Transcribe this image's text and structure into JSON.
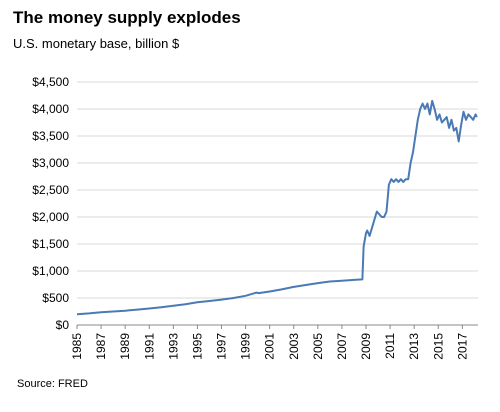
{
  "chart_data": {
    "type": "line",
    "title": "The money supply explodes",
    "subtitle": "U.S. monetary base, billion $",
    "source": "Source: FRED",
    "ylim": [
      0,
      4500
    ],
    "yticks": [
      0,
      500,
      1000,
      1500,
      2000,
      2500,
      3000,
      3500,
      4000,
      4500
    ],
    "ytick_labels": [
      "$0",
      "$500",
      "$1,000",
      "$1,500",
      "$2,000",
      "$2,500",
      "$3,000",
      "$3,500",
      "$4,000",
      "$4,500"
    ],
    "xlim": [
      1985,
      2018.3
    ],
    "xticks": [
      1985,
      1987,
      1989,
      1991,
      1993,
      1995,
      1997,
      1999,
      2001,
      2003,
      2005,
      2007,
      2009,
      2011,
      2013,
      2015,
      2017
    ],
    "xtick_labels": [
      "1985",
      "1987",
      "1989",
      "1991",
      "1993",
      "1995",
      "1997",
      "1999",
      "2001",
      "2003",
      "2005",
      "2007",
      "2009",
      "2011",
      "2013",
      "2015",
      "2017"
    ],
    "series_color": "#4a7ab5",
    "x": [
      1985,
      1986,
      1987,
      1988,
      1989,
      1990,
      1991,
      1992,
      1993,
      1994,
      1995,
      1996,
      1997,
      1998,
      1999,
      1999.9,
      2000.1,
      2001,
      2002,
      2003,
      2004,
      2005,
      2006,
      2007,
      2008,
      2008.7,
      2008.8,
      2009.0,
      2009.1,
      2009.3,
      2009.5,
      2009.7,
      2009.9,
      2010.1,
      2010.3,
      2010.5,
      2010.7,
      2010.9,
      2011.1,
      2011.3,
      2011.5,
      2011.7,
      2011.9,
      2012.1,
      2012.3,
      2012.5,
      2012.7,
      2012.9,
      2013.1,
      2013.3,
      2013.5,
      2013.7,
      2013.9,
      2014.1,
      2014.3,
      2014.5,
      2014.7,
      2014.9,
      2015.1,
      2015.3,
      2015.5,
      2015.7,
      2015.9,
      2016.1,
      2016.3,
      2016.5,
      2016.7,
      2016.9,
      2017.1,
      2017.3,
      2017.5,
      2017.7,
      2017.9,
      2018.1,
      2018.2
    ],
    "y": [
      200,
      215,
      235,
      250,
      265,
      285,
      305,
      330,
      355,
      385,
      420,
      445,
      470,
      500,
      540,
      600,
      590,
      620,
      660,
      705,
      740,
      775,
      805,
      820,
      835,
      845,
      1450,
      1700,
      1750,
      1650,
      1800,
      1950,
      2100,
      2050,
      2000,
      2000,
      2100,
      2600,
      2700,
      2650,
      2700,
      2650,
      2700,
      2650,
      2700,
      2700,
      3000,
      3200,
      3500,
      3800,
      4000,
      4100,
      4000,
      4100,
      3900,
      4150,
      4000,
      3800,
      3900,
      3750,
      3800,
      3850,
      3650,
      3800,
      3600,
      3650,
      3400,
      3700,
      3950,
      3800,
      3900,
      3850,
      3800,
      3900,
      3850
    ]
  }
}
